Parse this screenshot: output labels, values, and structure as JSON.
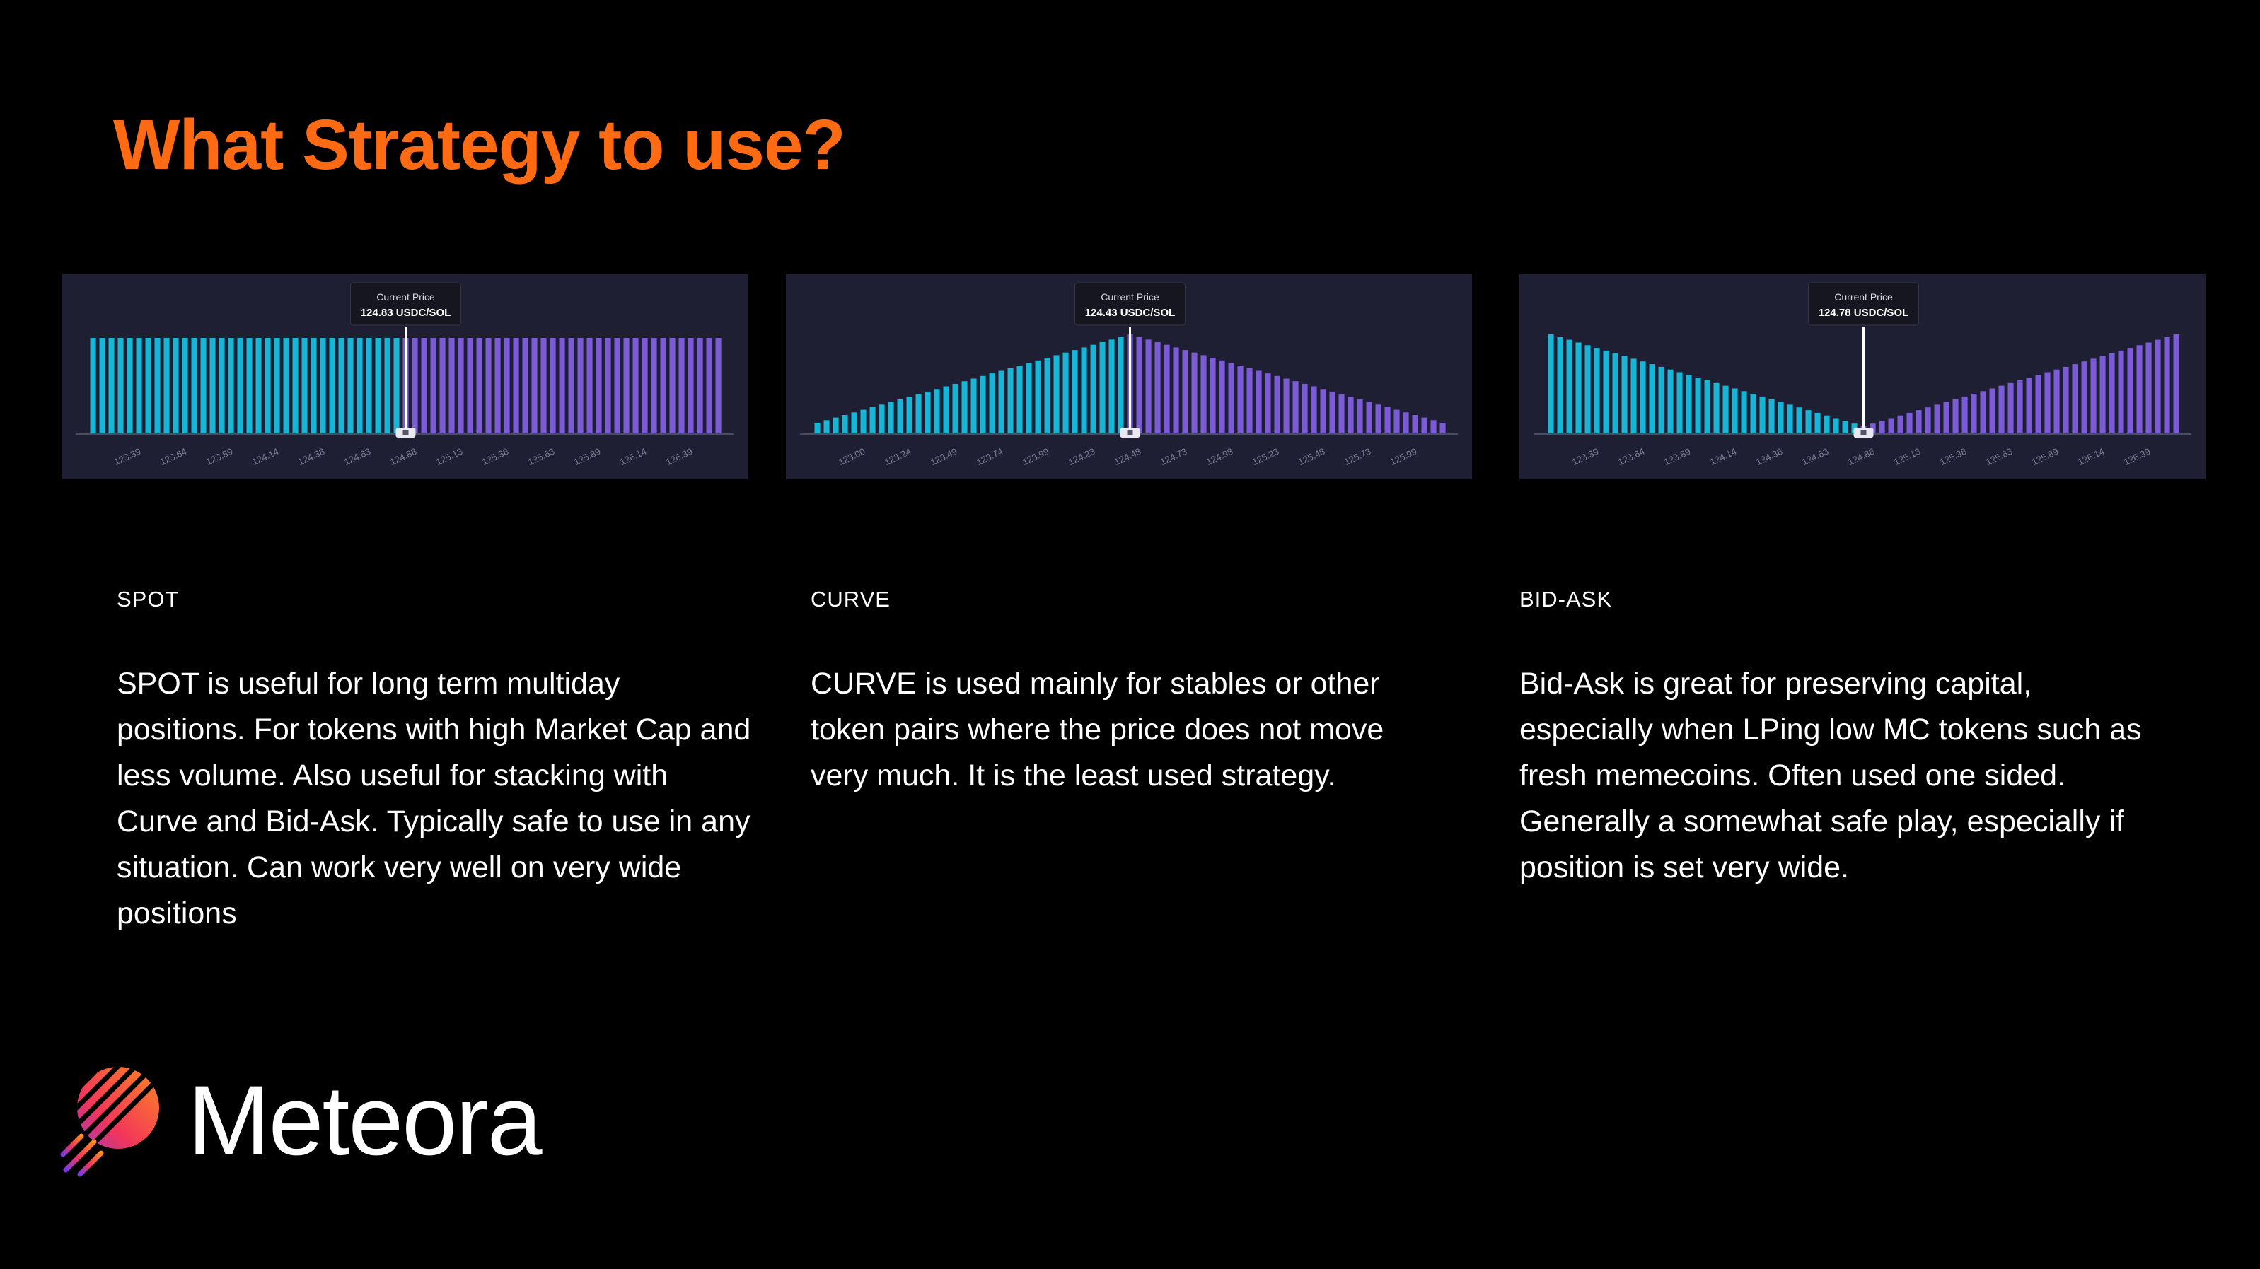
{
  "title": "What Strategy to use?",
  "brand": {
    "name": "Meteora",
    "logo_icon": "meteora-logo-icon"
  },
  "colors": {
    "accent": "#FF6A13",
    "bid_bar": "#17B5D6",
    "ask_bar": "#7B5CD6",
    "panel_bg": "#1E1F33"
  },
  "strategies": [
    {
      "label": "SPOT",
      "description": "SPOT is useful for long term multiday positions. For tokens with high Market Cap and less volume. Also useful for stacking with Curve and Bid-Ask. Typically safe to use in any situation. Can work very well on very wide positions",
      "chart_data": {
        "type": "bar",
        "shape": "spot",
        "tooltip_title": "Current Price",
        "tooltip_value": "124.83 USDC/SOL",
        "tick_labels": [
          "123.39",
          "123.64",
          "123.89",
          "124.14",
          "124.38",
          "124.63",
          "124.88",
          "125.13",
          "125.38",
          "125.63",
          "125.89",
          "126.14",
          "126.39"
        ]
      }
    },
    {
      "label": "CURVE",
      "description": "CURVE is used mainly for stables or other token pairs where the price does not move very much. It is the least used strategy.",
      "chart_data": {
        "type": "bar",
        "shape": "curve",
        "tooltip_title": "Current Price",
        "tooltip_value": "124.43 USDC/SOL",
        "tick_labels": [
          "123.00",
          "123.24",
          "123.49",
          "123.74",
          "123.99",
          "124.23",
          "124.48",
          "124.73",
          "124.98",
          "125.23",
          "125.48",
          "125.73",
          "125.99"
        ]
      }
    },
    {
      "label": "BID-ASK",
      "description": "Bid-Ask is great for preserving capital, especially when LPing low MC tokens such as fresh memecoins. Often used one sided. Generally a somewhat safe play, especially if position is set very wide.",
      "chart_data": {
        "type": "bar",
        "shape": "bidask",
        "tooltip_title": "Current Price",
        "tooltip_value": "124.78 USDC/SOL",
        "tick_labels": [
          "123.39",
          "123.64",
          "123.89",
          "124.14",
          "124.38",
          "124.63",
          "124.88",
          "125.13",
          "125.38",
          "125.63",
          "125.89",
          "126.14",
          "126.39"
        ]
      }
    }
  ]
}
